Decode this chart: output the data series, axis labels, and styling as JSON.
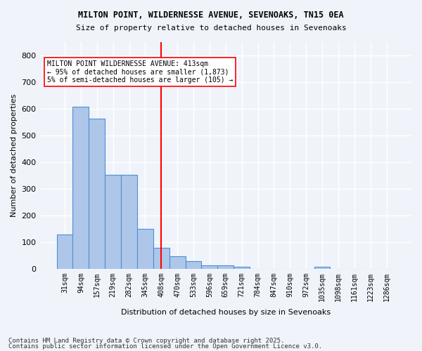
{
  "title1": "MILTON POINT, WILDERNESSE AVENUE, SEVENOAKS, TN15 0EA",
  "title2": "Size of property relative to detached houses in Sevenoaks",
  "xlabel": "Distribution of detached houses by size in Sevenoaks",
  "ylabel": "Number of detached properties",
  "categories": [
    "31sqm",
    "94sqm",
    "157sqm",
    "219sqm",
    "282sqm",
    "345sqm",
    "408sqm",
    "470sqm",
    "533sqm",
    "596sqm",
    "659sqm",
    "721sqm",
    "784sqm",
    "847sqm",
    "910sqm",
    "972sqm",
    "1035sqm",
    "1098sqm",
    "1161sqm",
    "1223sqm",
    "1286sqm"
  ],
  "values": [
    128,
    607,
    563,
    352,
    352,
    150,
    78,
    48,
    30,
    13,
    13,
    7,
    0,
    0,
    0,
    0,
    7,
    0,
    0,
    0,
    0
  ],
  "bar_color": "#aec6e8",
  "bar_edge_color": "#4a90d9",
  "vline_x": 6,
  "vline_color": "red",
  "annotation_text": "MILTON POINT WILDERNESSE AVENUE: 413sqm\n← 95% of detached houses are smaller (1,873)\n5% of semi-detached houses are larger (105) →",
  "annotation_box_color": "white",
  "annotation_box_edge": "red",
  "ylim": [
    0,
    850
  ],
  "yticks": [
    0,
    100,
    200,
    300,
    400,
    500,
    600,
    700,
    800
  ],
  "footer1": "Contains HM Land Registry data © Crown copyright and database right 2025.",
  "footer2": "Contains public sector information licensed under the Open Government Licence v3.0.",
  "bg_color": "#f0f4fa",
  "grid_color": "white"
}
